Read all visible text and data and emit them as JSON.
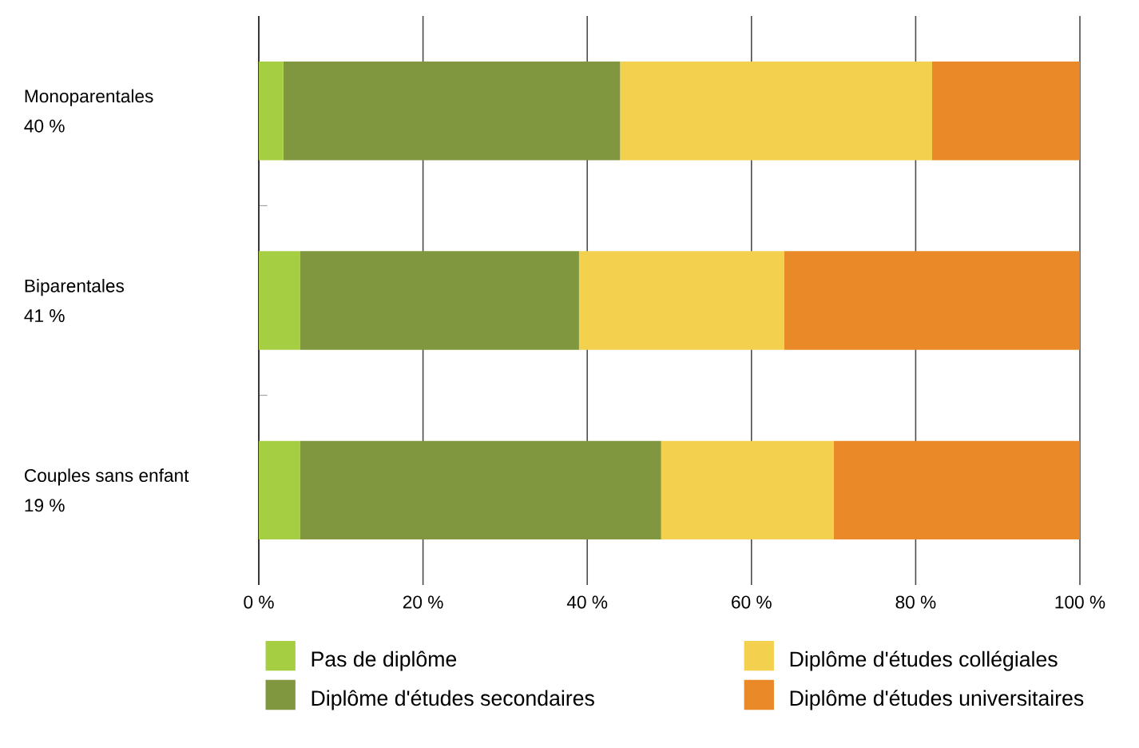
{
  "chart_data": {
    "type": "bar",
    "orientation": "horizontal",
    "stacked": true,
    "categories": [
      "Monoparentales\n40 %",
      "Biparentales\n41 %",
      "Couples sans enfant\n19 %"
    ],
    "series": [
      {
        "name": "Pas de diplôme",
        "color": "#a6ce42",
        "values": [
          3,
          5,
          5
        ]
      },
      {
        "name": "Diplôme d'études secondaires",
        "color": "#81973f",
        "values": [
          41,
          34,
          44
        ]
      },
      {
        "name": "Diplôme d'études collégiales",
        "color": "#f4d04f",
        "values": [
          38,
          25,
          21
        ]
      },
      {
        "name": "Diplôme d'études universitaires",
        "color": "#ea8927",
        "values": [
          18,
          36,
          30
        ]
      }
    ],
    "xlim": [
      0,
      100
    ],
    "xticks": [
      {
        "value": 0,
        "label": "0 %"
      },
      {
        "value": 20,
        "label": "20 %"
      },
      {
        "value": 40,
        "label": "40 %"
      },
      {
        "value": 60,
        "label": "60 %"
      },
      {
        "value": 80,
        "label": "80 %"
      },
      {
        "value": 100,
        "label": "100 %"
      }
    ],
    "grid": "x",
    "legend": "bottom"
  }
}
